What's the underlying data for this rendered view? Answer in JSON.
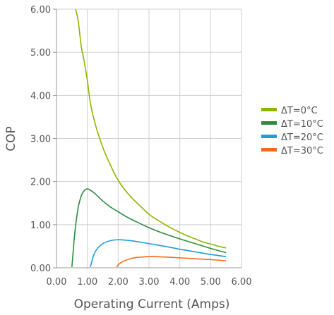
{
  "chart_data": {
    "type": "line",
    "title": "",
    "xlabel": "Operating Current (Amps)",
    "ylabel": "COP",
    "xlim": [
      0,
      6
    ],
    "ylim": [
      0,
      6
    ],
    "x_ticks": [
      "0.00",
      "1.00",
      "2.00",
      "3.00",
      "4.00",
      "5.00",
      "6.00"
    ],
    "y_ticks": [
      "0.00",
      "1.00",
      "2.00",
      "3.00",
      "4.00",
      "5.00",
      "6.00"
    ],
    "grid": true,
    "legend_position": "right",
    "series": [
      {
        "name": "ΔT=0°C",
        "color": "#8db600",
        "x": [
          0.62,
          0.7,
          0.8,
          0.9,
          1.0,
          1.1,
          1.25,
          1.5,
          1.75,
          2.0,
          2.25,
          2.5,
          2.75,
          3.0,
          3.25,
          3.5,
          3.75,
          4.0,
          4.25,
          4.5,
          4.75,
          5.0,
          5.25,
          5.5
        ],
        "y": [
          6.0,
          5.75,
          5.15,
          4.78,
          4.35,
          3.82,
          3.35,
          2.8,
          2.38,
          2.03,
          1.78,
          1.58,
          1.41,
          1.24,
          1.12,
          1.01,
          0.91,
          0.82,
          0.74,
          0.67,
          0.6,
          0.55,
          0.5,
          0.46
        ]
      },
      {
        "name": "ΔT=10°C",
        "color": "#2e8b3e",
        "x": [
          0.5,
          0.55,
          0.6,
          0.7,
          0.8,
          0.9,
          1.0,
          1.1,
          1.25,
          1.5,
          1.75,
          2.0,
          2.25,
          2.5,
          3.0,
          3.5,
          4.0,
          4.5,
          5.0,
          5.5
        ],
        "y": [
          0.02,
          0.45,
          0.85,
          1.38,
          1.66,
          1.79,
          1.83,
          1.8,
          1.72,
          1.55,
          1.41,
          1.3,
          1.19,
          1.1,
          0.93,
          0.79,
          0.67,
          0.56,
          0.45,
          0.35
        ]
      },
      {
        "name": "ΔT=20°C",
        "color": "#1f9bd7",
        "x": [
          1.1,
          1.2,
          1.3,
          1.5,
          1.75,
          2.0,
          2.25,
          2.5,
          3.0,
          3.5,
          4.0,
          4.5,
          5.0,
          5.5
        ],
        "y": [
          0.02,
          0.28,
          0.42,
          0.56,
          0.63,
          0.65,
          0.64,
          0.62,
          0.56,
          0.5,
          0.43,
          0.37,
          0.31,
          0.26
        ]
      },
      {
        "name": "ΔT=30°C",
        "color": "#f26b1d",
        "x": [
          1.95,
          2.05,
          2.2,
          2.4,
          2.6,
          2.8,
          3.0,
          3.5,
          4.0,
          4.5,
          5.0,
          5.5
        ],
        "y": [
          0.02,
          0.1,
          0.16,
          0.21,
          0.24,
          0.25,
          0.26,
          0.25,
          0.23,
          0.21,
          0.19,
          0.16
        ]
      }
    ]
  }
}
